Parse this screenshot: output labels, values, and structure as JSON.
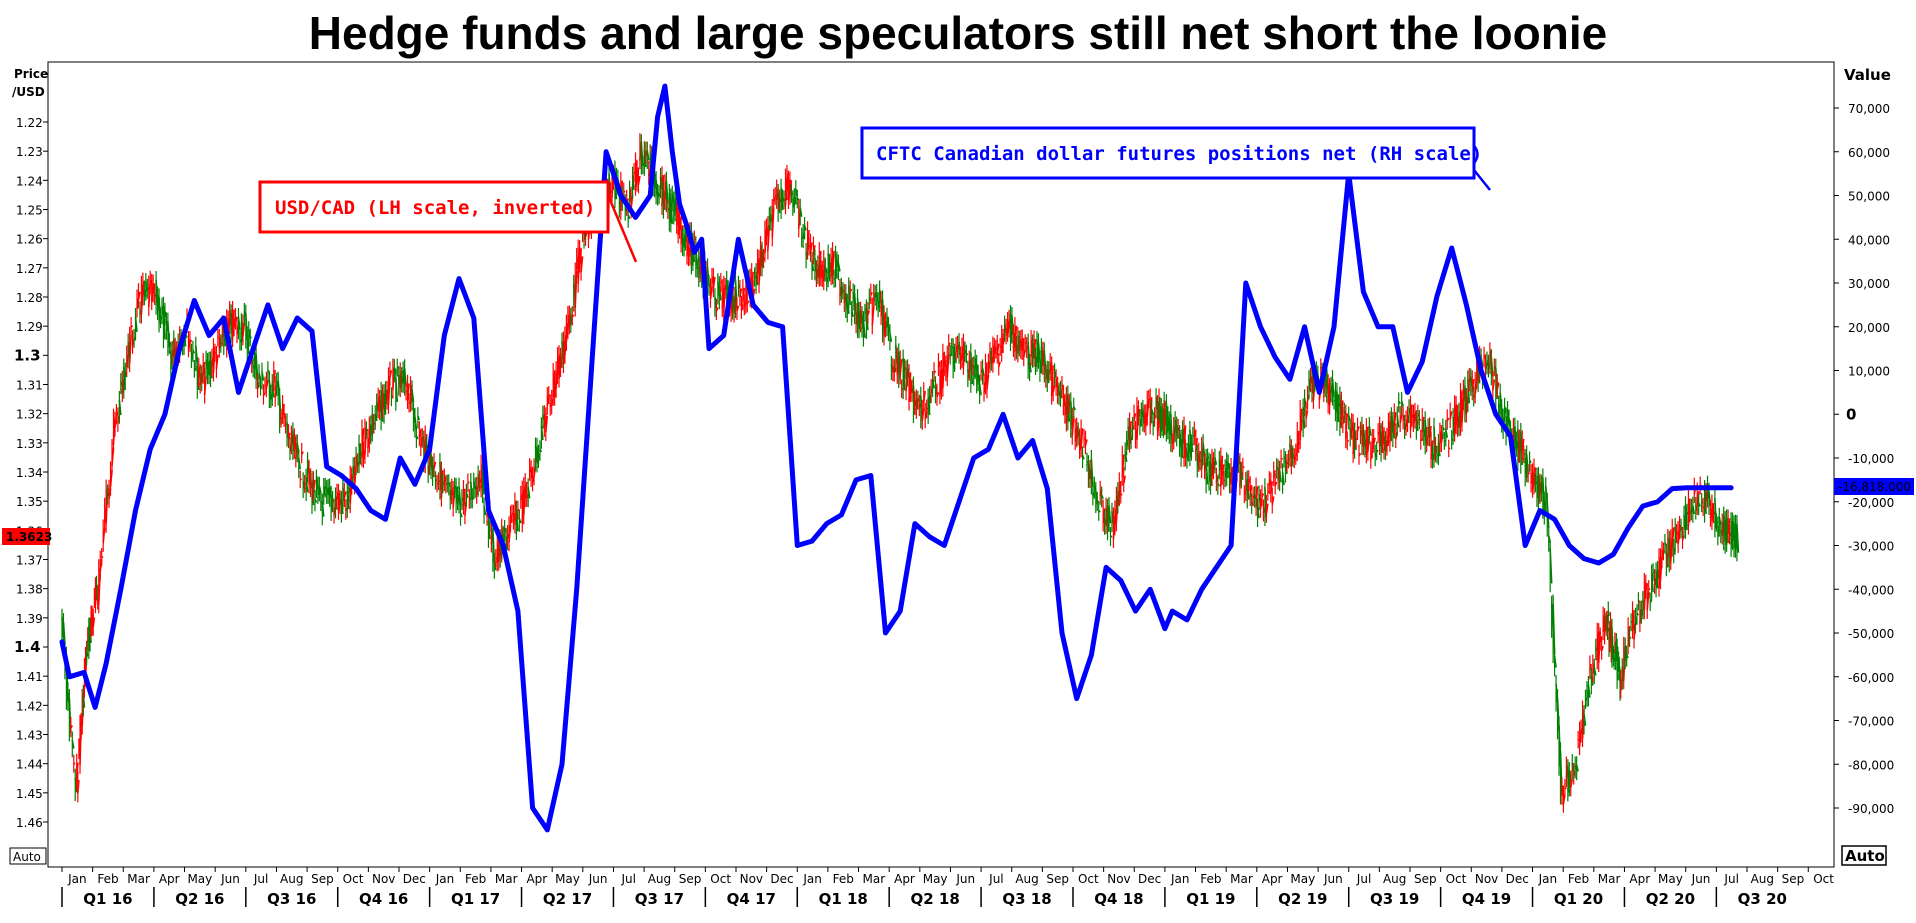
{
  "chart_data": {
    "type": "line",
    "title": "Hedge funds and large speculators still net short the loonie",
    "left_axis": {
      "label_line1": "Price",
      "label_line2": "/USD",
      "inverted": true,
      "ylim": [
        1.22,
        1.46
      ],
      "ticks": [
        "1.22",
        "1.23",
        "1.24",
        "1.25",
        "1.26",
        "1.27",
        "1.28",
        "1.29",
        "1.3",
        "1.31",
        "1.32",
        "1.33",
        "1.34",
        "1.35",
        "1.36",
        "1.37",
        "1.38",
        "1.39",
        "1.4",
        "1.41",
        "1.42",
        "1.43",
        "1.44",
        "1.45",
        "1.46"
      ],
      "major_ticks": [
        "1.3",
        "1.4"
      ],
      "last_value_label": "1.3623",
      "auto_label": "Auto"
    },
    "right_axis": {
      "label": "Value",
      "ylim": [
        -90000,
        70000
      ],
      "ticks": [
        "70,000",
        "60,000",
        "50,000",
        "40,000",
        "30,000",
        "20,000",
        "10,000",
        "0",
        "-10,000",
        "-20,000",
        "-30,000",
        "-40,000",
        "-50,000",
        "-60,000",
        "-70,000",
        "-80,000",
        "-90,000"
      ],
      "last_value_label": "-16,818.000",
      "auto_label": "Auto"
    },
    "x_axis": {
      "months": [
        "Jan",
        "Feb",
        "Mar",
        "Apr",
        "May",
        "Jun",
        "Jul",
        "Aug",
        "Sep",
        "Oct",
        "Nov",
        "Dec",
        "Jan",
        "Feb",
        "Mar",
        "Apr",
        "May",
        "Jun",
        "Jul",
        "Aug",
        "Sep",
        "Oct",
        "Nov",
        "Dec",
        "Jan",
        "Feb",
        "Mar",
        "Apr",
        "May",
        "Jun",
        "Jul",
        "Aug",
        "Sep",
        "Oct",
        "Nov",
        "Dec",
        "Jan",
        "Feb",
        "Mar",
        "Apr",
        "May",
        "Jun",
        "Jul",
        "Aug",
        "Sep",
        "Oct",
        "Nov",
        "Dec",
        "Jan",
        "Feb",
        "Mar",
        "Apr",
        "May",
        "Jun",
        "Jul",
        "Aug",
        "Sep",
        "Oct"
      ],
      "quarters": [
        "Q1 16",
        "Q2 16",
        "Q3 16",
        "Q4 16",
        "Q1 17",
        "Q2 17",
        "Q3 17",
        "Q4 17",
        "Q1 18",
        "Q2 18",
        "Q3 18",
        "Q4 18",
        "Q1 19",
        "Q2 19",
        "Q3 19",
        "Q4 19",
        "Q1 20",
        "Q2 20",
        "Q3 20"
      ]
    },
    "annotations": {
      "usdcad_label": "USD/CAD (LH scale, inverted)",
      "cftc_label": "CFTC Canadian dollar futures positions net (RH scale)"
    },
    "colors": {
      "usdcad_up": "#ff0000",
      "usdcad_down": "#008000",
      "cftc": "#0000ff",
      "usdcad_box": "#ff0000",
      "cftc_box": "#0000ff"
    },
    "series": [
      {
        "name": "USD/CAD (LH scale, inverted)",
        "axis": "left",
        "x": [
          2016.0,
          2016.04,
          2016.07,
          2016.1,
          2016.14,
          2016.18,
          2016.22,
          2016.26,
          2016.3,
          2016.34,
          2016.38,
          2016.42,
          2016.46,
          2016.5,
          2016.54,
          2016.58,
          2016.62,
          2016.66,
          2016.7,
          2016.74,
          2016.78,
          2016.82,
          2016.86,
          2016.9,
          2016.94,
          2016.98,
          2017.02,
          2017.06,
          2017.1,
          2017.14,
          2017.18,
          2017.22,
          2017.26,
          2017.3,
          2017.34,
          2017.38,
          2017.42,
          2017.46,
          2017.5,
          2017.54,
          2017.58,
          2017.62,
          2017.66,
          2017.7,
          2017.74,
          2017.78,
          2017.82,
          2017.86,
          2017.9,
          2017.94,
          2017.98,
          2018.02,
          2018.06,
          2018.1,
          2018.14,
          2018.18,
          2018.22,
          2018.26,
          2018.3,
          2018.34,
          2018.38,
          2018.42,
          2018.46,
          2018.5,
          2018.54,
          2018.58,
          2018.62,
          2018.66,
          2018.7,
          2018.74,
          2018.78,
          2018.82,
          2018.86,
          2018.9,
          2018.94,
          2018.98,
          2019.0,
          2019.04,
          2019.08,
          2019.12,
          2019.16,
          2019.2,
          2019.24,
          2019.28,
          2019.32,
          2019.36,
          2019.4,
          2019.44,
          2019.48,
          2019.52,
          2019.56,
          2019.6,
          2019.64,
          2019.68,
          2019.72,
          2019.76,
          2019.8,
          2019.84,
          2019.88,
          2019.92,
          2019.96,
          2020.0,
          2020.04,
          2020.08,
          2020.12,
          2020.16,
          2020.2,
          2020.22,
          2020.24,
          2020.28,
          2020.32,
          2020.36,
          2020.4,
          2020.44,
          2020.48,
          2020.52,
          2020.56
        ],
        "values": [
          1.39,
          1.45,
          1.4,
          1.38,
          1.33,
          1.3,
          1.28,
          1.28,
          1.3,
          1.29,
          1.31,
          1.3,
          1.29,
          1.29,
          1.31,
          1.31,
          1.33,
          1.34,
          1.35,
          1.35,
          1.35,
          1.33,
          1.32,
          1.31,
          1.31,
          1.33,
          1.34,
          1.35,
          1.35,
          1.34,
          1.37,
          1.36,
          1.35,
          1.33,
          1.31,
          1.29,
          1.26,
          1.25,
          1.24,
          1.25,
          1.23,
          1.24,
          1.25,
          1.26,
          1.27,
          1.28,
          1.28,
          1.28,
          1.27,
          1.25,
          1.24,
          1.26,
          1.27,
          1.27,
          1.28,
          1.29,
          1.28,
          1.3,
          1.31,
          1.32,
          1.31,
          1.3,
          1.3,
          1.31,
          1.3,
          1.29,
          1.3,
          1.3,
          1.31,
          1.32,
          1.33,
          1.35,
          1.36,
          1.33,
          1.32,
          1.32,
          1.32,
          1.33,
          1.33,
          1.34,
          1.34,
          1.34,
          1.35,
          1.35,
          1.34,
          1.33,
          1.31,
          1.31,
          1.32,
          1.33,
          1.33,
          1.33,
          1.32,
          1.32,
          1.33,
          1.33,
          1.32,
          1.31,
          1.3,
          1.32,
          1.33,
          1.34,
          1.35,
          1.45,
          1.44,
          1.41,
          1.39,
          1.4,
          1.41,
          1.39,
          1.38,
          1.37,
          1.36,
          1.35,
          1.35,
          1.36,
          1.362
        ]
      },
      {
        "name": "CFTC Canadian dollar futures positions net (RH scale)",
        "axis": "right",
        "x": [
          2016.0,
          2016.02,
          2016.06,
          2016.09,
          2016.12,
          2016.16,
          2016.2,
          2016.24,
          2016.28,
          2016.32,
          2016.36,
          2016.38,
          2016.4,
          2016.44,
          2016.48,
          2016.52,
          2016.56,
          2016.6,
          2016.64,
          2016.68,
          2016.72,
          2016.76,
          2016.8,
          2016.84,
          2016.88,
          2016.92,
          2016.96,
          2017.0,
          2017.04,
          2017.08,
          2017.12,
          2017.16,
          2017.2,
          2017.24,
          2017.28,
          2017.32,
          2017.36,
          2017.4,
          2017.44,
          2017.48,
          2017.52,
          2017.56,
          2017.6,
          2017.62,
          2017.64,
          2017.66,
          2017.68,
          2017.7,
          2017.72,
          2017.74,
          2017.76,
          2017.8,
          2017.84,
          2017.88,
          2017.92,
          2017.96,
          2018.0,
          2018.04,
          2018.08,
          2018.12,
          2018.16,
          2018.2,
          2018.24,
          2018.28,
          2018.32,
          2018.36,
          2018.4,
          2018.44,
          2018.48,
          2018.52,
          2018.56,
          2018.6,
          2018.64,
          2018.68,
          2018.72,
          2018.76,
          2018.8,
          2018.84,
          2018.88,
          2018.92,
          2018.96,
          2019.0,
          2019.02,
          2019.06,
          2019.1,
          2019.14,
          2019.18,
          2019.22,
          2019.26,
          2019.3,
          2019.34,
          2019.38,
          2019.42,
          2019.46,
          2019.5,
          2019.54,
          2019.58,
          2019.62,
          2019.66,
          2019.7,
          2019.74,
          2019.78,
          2019.82,
          2019.86,
          2019.9,
          2019.94,
          2019.98,
          2020.02,
          2020.06,
          2020.1,
          2020.14,
          2020.18,
          2020.22,
          2020.26,
          2020.3,
          2020.34,
          2020.38,
          2020.42,
          2020.46,
          2020.5,
          2020.54
        ],
        "values": [
          -52000,
          -60000,
          -59000,
          -67000,
          -57000,
          -40000,
          -22000,
          -8000,
          0,
          15000,
          26000,
          22000,
          18000,
          22000,
          5000,
          15000,
          25000,
          15000,
          22000,
          19000,
          -12000,
          -14000,
          -17000,
          -22000,
          -24000,
          -10000,
          -16000,
          -8000,
          18000,
          31000,
          22000,
          -22000,
          -30000,
          -45000,
          -90000,
          -95000,
          -80000,
          -40000,
          10000,
          60000,
          50000,
          45000,
          50000,
          68000,
          75000,
          60000,
          48000,
          43000,
          37000,
          40000,
          15000,
          18000,
          40000,
          25000,
          21000,
          20000,
          -30000,
          -29000,
          -25000,
          -23000,
          -15000,
          -14000,
          -50000,
          -45000,
          -25000,
          -28000,
          -30000,
          -20000,
          -10000,
          -8000,
          0,
          -10000,
          -6000,
          -17000,
          -50000,
          -65000,
          -55000,
          -35000,
          -38000,
          -45000,
          -40000,
          -49000,
          -45000,
          -47000,
          -40000,
          -35000,
          -30000,
          30000,
          20000,
          13000,
          8000,
          20000,
          5000,
          20000,
          55000,
          28000,
          20000,
          20000,
          5000,
          12000,
          27000,
          38000,
          25000,
          10000,
          0,
          -5000,
          -30000,
          -22000,
          -24000,
          -30000,
          -33000,
          -34000,
          -32000,
          -26000,
          -21000,
          -20000,
          -17000,
          -16818,
          -16818,
          -16818,
          -16818
        ]
      }
    ]
  }
}
